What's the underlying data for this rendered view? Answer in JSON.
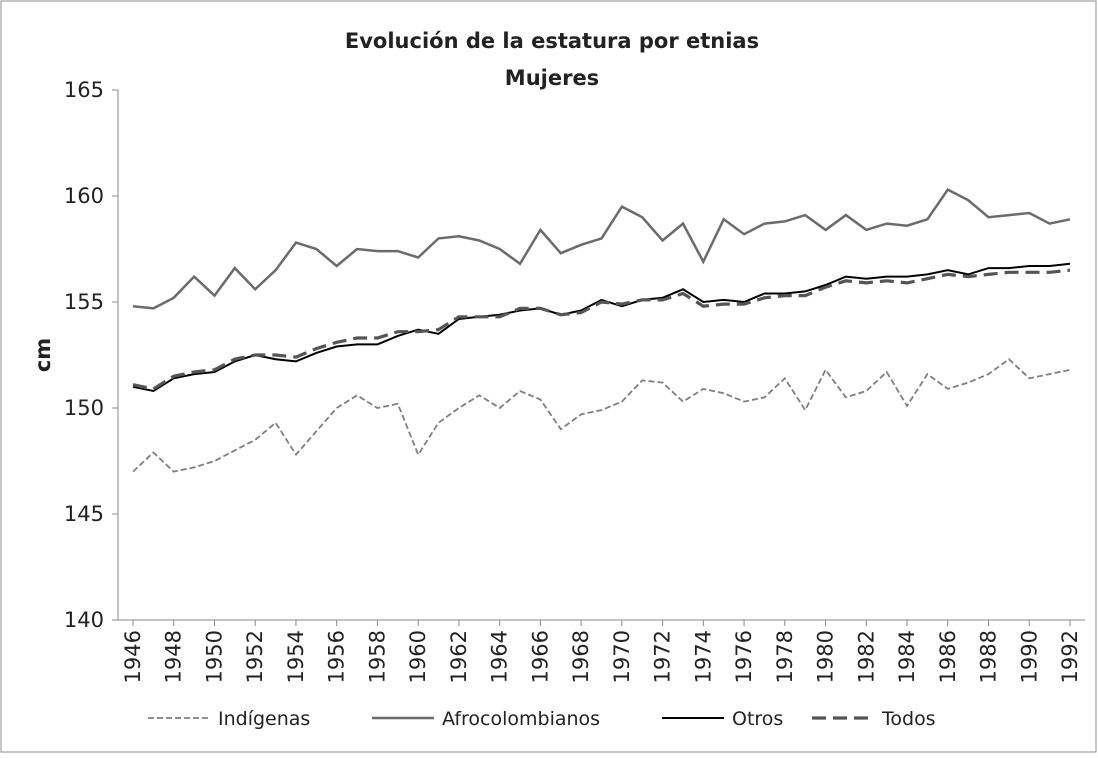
{
  "chart_data": {
    "type": "line",
    "title": "Evolución de la estatura por etnias",
    "subtitle": "Mujeres",
    "y_label": "cm",
    "x": [
      1946,
      1947,
      1948,
      1949,
      1950,
      1951,
      1952,
      1953,
      1954,
      1955,
      1956,
      1957,
      1958,
      1959,
      1960,
      1961,
      1962,
      1963,
      1964,
      1965,
      1966,
      1967,
      1968,
      1969,
      1970,
      1971,
      1972,
      1973,
      1974,
      1975,
      1976,
      1977,
      1978,
      1979,
      1980,
      1981,
      1982,
      1983,
      1984,
      1985,
      1986,
      1987,
      1988,
      1989,
      1990,
      1991,
      1992
    ],
    "xlim": [
      1946,
      1992
    ],
    "xticks": [
      1946,
      1948,
      1950,
      1952,
      1954,
      1956,
      1958,
      1960,
      1962,
      1964,
      1966,
      1968,
      1970,
      1972,
      1974,
      1976,
      1978,
      1980,
      1982,
      1984,
      1986,
      1988,
      1990,
      1992
    ],
    "ylim": [
      140,
      165
    ],
    "yticks": [
      140,
      145,
      150,
      155,
      160,
      165
    ],
    "grid": false,
    "legend": "bottom",
    "series": [
      {
        "name": "Indígenas",
        "color": "#7f7f7f",
        "line_style": "dotted",
        "values": [
          147.0,
          147.9,
          147.0,
          147.2,
          147.5,
          148.0,
          148.5,
          149.3,
          147.8,
          148.9,
          150.0,
          150.6,
          150.0,
          150.2,
          147.8,
          149.3,
          150.0,
          150.6,
          150.0,
          150.8,
          150.4,
          149.0,
          149.7,
          149.9,
          150.3,
          151.3,
          151.2,
          150.3,
          150.9,
          150.7,
          150.3,
          150.5,
          151.4,
          149.9,
          151.8,
          150.5,
          150.8,
          151.7,
          150.1,
          151.6,
          150.9,
          151.2,
          151.6,
          152.3,
          151.4,
          151.6,
          151.8
        ]
      },
      {
        "name": "Afrocolombianos",
        "color": "#6b6b6b",
        "line_style": "solid",
        "values": [
          154.8,
          154.7,
          155.2,
          156.2,
          155.3,
          156.6,
          155.6,
          156.5,
          157.8,
          157.5,
          156.7,
          157.5,
          157.4,
          157.4,
          157.1,
          158.0,
          158.1,
          157.9,
          157.5,
          156.8,
          158.4,
          157.3,
          157.7,
          158.0,
          159.5,
          159.0,
          157.9,
          158.7,
          156.9,
          158.9,
          158.2,
          158.7,
          158.8,
          159.1,
          158.4,
          159.1,
          158.4,
          158.7,
          158.6,
          158.9,
          160.3,
          159.8,
          159.0,
          159.1,
          159.2,
          158.7,
          158.9
        ]
      },
      {
        "name": "Otros",
        "color": "#000000",
        "line_style": "solid",
        "values": [
          151.0,
          150.8,
          151.4,
          151.6,
          151.7,
          152.2,
          152.5,
          152.3,
          152.2,
          152.6,
          152.9,
          153.0,
          153.0,
          153.4,
          153.7,
          153.5,
          154.2,
          154.3,
          154.4,
          154.6,
          154.7,
          154.4,
          154.6,
          155.1,
          154.8,
          155.1,
          155.2,
          155.6,
          155.0,
          155.1,
          155.0,
          155.4,
          155.4,
          155.5,
          155.8,
          156.2,
          156.1,
          156.2,
          156.2,
          156.3,
          156.5,
          156.3,
          156.6,
          156.6,
          156.7,
          156.7,
          156.8
        ]
      },
      {
        "name": "Todos",
        "color": "#555555",
        "line_style": "dashed",
        "values": [
          151.1,
          150.9,
          151.5,
          151.7,
          151.8,
          152.3,
          152.5,
          152.5,
          152.4,
          152.8,
          153.1,
          153.3,
          153.3,
          153.6,
          153.6,
          153.7,
          154.3,
          154.3,
          154.3,
          154.7,
          154.7,
          154.4,
          154.5,
          155.0,
          154.9,
          155.1,
          155.1,
          155.4,
          154.8,
          154.9,
          154.9,
          155.2,
          155.3,
          155.3,
          155.7,
          156.0,
          155.9,
          156.0,
          155.9,
          156.1,
          156.3,
          156.2,
          156.3,
          156.4,
          156.4,
          156.4,
          156.5
        ]
      }
    ]
  }
}
